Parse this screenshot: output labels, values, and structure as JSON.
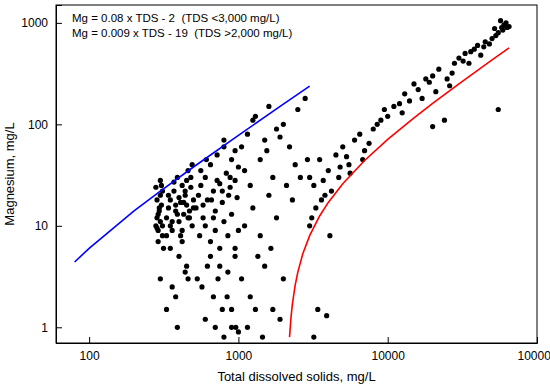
{
  "chart_data": {
    "type": "scatter",
    "x_label": "Total dissolved solids, mg/L",
    "y_label": "Magnesium, mg/L",
    "annotations": [
      "Mg = 0.08 x TDS - 2  (TDS <3,000 mg/L)",
      "Mg = 0.009 x TDS - 19  (TDS >2,000 mg/L)"
    ],
    "log": true,
    "grid": false,
    "xlim": [
      60,
      100000
    ],
    "ylim": [
      0.7,
      1500
    ],
    "xticks": [
      100,
      1000,
      10000,
      100000
    ],
    "yticks": [
      1,
      10,
      100,
      1000
    ],
    "series": [
      {
        "type": "scatter",
        "color": "#000000",
        "marker": "circle",
        "x": [
          280,
          285,
          290,
          295,
          300,
          305,
          310,
          290,
          285,
          300,
          295,
          310,
          315,
          280,
          300,
          290,
          305,
          285,
          310,
          300,
          330,
          340,
          350,
          360,
          370,
          380,
          390,
          400,
          410,
          420,
          430,
          440,
          450,
          460,
          470,
          480,
          490,
          500,
          330,
          350,
          370,
          390,
          410,
          430,
          450,
          470,
          490,
          340,
          360,
          380,
          400,
          420,
          440,
          460,
          480,
          500,
          350,
          400,
          450,
          380,
          420,
          460,
          330,
          360,
          390,
          440,
          520,
          540,
          560,
          580,
          600,
          620,
          650,
          680,
          700,
          720,
          750,
          780,
          800,
          830,
          860,
          900,
          950,
          1000,
          550,
          600,
          650,
          700,
          750,
          800,
          850,
          900,
          950,
          1000,
          530,
          570,
          620,
          680,
          730,
          780,
          840,
          900,
          960,
          560,
          610,
          660,
          720,
          800,
          880,
          950,
          600,
          700,
          800,
          900,
          1000,
          650,
          750,
          850,
          950,
          580,
          680,
          780,
          880,
          980,
          1050,
          1100,
          1150,
          1200,
          1300,
          1400,
          1500,
          1600,
          1700,
          1800,
          2000,
          2200,
          2500,
          2800,
          1100,
          1250,
          1400,
          1600,
          1800,
          2100,
          2400,
          1050,
          1200,
          1350,
          1500,
          1700,
          1900,
          1150,
          1300,
          1450,
          1650,
          2000,
          2300,
          2600,
          1250,
          1550,
          1900,
          2900,
          3000,
          3200,
          3500,
          3800,
          4000,
          4500,
          5000,
          5500,
          6000,
          7000,
          8000,
          9000,
          3300,
          3700,
          4200,
          4800,
          5300,
          6500,
          7500,
          8500,
          9500,
          3100,
          3600,
          4100,
          4700,
          5600,
          6800,
          3000,
          3400,
          3900,
          3200,
          10000,
          11000,
          12000,
          13000,
          15000,
          16000,
          18000,
          20000,
          22000,
          25000,
          28000,
          30000,
          33000,
          35000,
          38000,
          40000,
          45000,
          50000,
          55000,
          58000,
          60000,
          62000,
          12500,
          17000,
          21000,
          26000,
          32000,
          42000,
          48000,
          53000,
          57000,
          63000,
          20000,
          24000,
          14000,
          19000,
          27000,
          36000,
          44000,
          52000,
          59000,
          65000,
          55000
        ],
        "values": [
          10,
          12,
          9,
          15,
          20,
          25,
          8,
          7,
          18,
          11,
          14,
          22,
          6,
          24,
          28,
          13,
          16,
          9.5,
          10,
          3,
          12,
          15,
          18,
          9,
          22,
          14,
          30,
          11,
          17,
          25,
          13,
          20,
          16,
          35,
          12,
          24,
          10,
          18,
          8,
          10,
          27,
          13,
          8,
          17,
          28,
          14,
          40,
          20,
          11,
          16,
          19,
          9,
          22,
          12,
          30,
          15,
          6,
          5,
          4,
          2,
          7,
          3,
          1.5,
          2.5,
          1,
          3.5,
          15,
          20,
          25,
          12,
          30,
          18,
          40,
          22,
          14,
          50,
          26,
          17,
          60,
          33,
          20,
          45,
          28,
          38,
          8,
          10,
          7,
          9,
          6,
          11,
          8,
          13,
          5,
          9,
          3,
          2.5,
          4,
          2,
          3,
          1.5,
          2,
          1,
          1,
          35,
          45,
          18,
          28,
          70,
          24,
          55,
          1.2,
          1,
          0.8,
          1.5,
          0.9,
          5,
          4,
          3.5,
          6,
          16,
          12,
          22,
          30,
          19,
          60,
          35,
          80,
          25,
          120,
          45,
          70,
          150,
          30,
          90,
          100,
          60,
          140,
          180,
          10,
          15,
          8,
          20,
          12,
          25,
          40,
          3,
          2,
          5,
          4,
          1.5,
          1.2,
          1,
          1.5,
          0.8,
          6,
          3,
          18,
          30,
          110,
          55,
          75,
          45,
          30,
          25,
          45,
          20,
          35,
          50,
          60,
          40,
          70,
          55,
          90,
          110,
          15,
          28,
          22,
          38,
          48,
          80,
          65,
          100,
          140,
          12,
          18,
          8,
          30,
          33,
          45,
          10,
          1.5,
          1.3,
          0.8,
          120,
          150,
          160,
          200,
          250,
          220,
          280,
          300,
          350,
          280,
          400,
          450,
          500,
          400,
          550,
          600,
          650,
          700,
          800,
          900,
          950,
          1000,
          130,
          180,
          210,
          240,
          420,
          480,
          620,
          750,
          1050,
          900,
          95,
          110,
          170,
          260,
          320,
          520,
          580,
          880,
          850,
          920,
          140
        ]
      },
      {
        "type": "line",
        "color": "#0000ff",
        "line_style": "solid",
        "x": [
          80,
          100,
          200,
          300,
          500,
          1000,
          2000,
          3000
        ],
        "values": [
          4.4,
          6,
          14,
          22,
          38,
          78,
          158,
          238
        ]
      },
      {
        "type": "line",
        "color": "#ff0000",
        "line_style": "solid",
        "x": [
          2200,
          2250,
          2300,
          2400,
          2500,
          2700,
          3000,
          3500,
          4000,
          5000,
          7000,
          10000,
          15000,
          20000,
          30000,
          40000,
          50000,
          65000
        ],
        "values": [
          0.8,
          1.25,
          1.7,
          2.6,
          3.5,
          5.3,
          8,
          12.5,
          17,
          26,
          44,
          71,
          116,
          161,
          251,
          341,
          431,
          566
        ]
      }
    ]
  }
}
